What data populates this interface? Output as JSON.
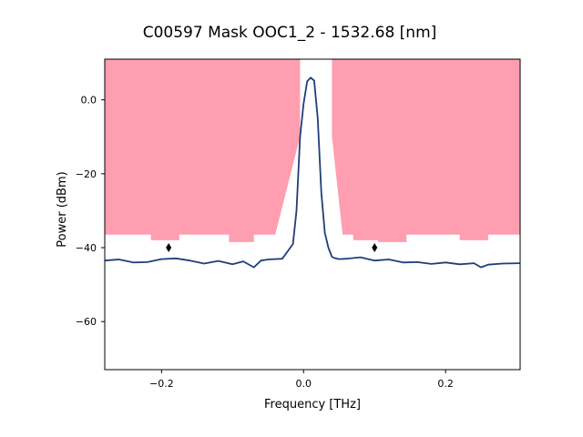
{
  "chart_data": {
    "type": "line",
    "title": "C00597 Mask OOC1_2 - 1532.68 [nm]",
    "xlabel": "Frequency [THz]",
    "ylabel": "Power (dBm)",
    "xlim": [
      -0.28,
      0.305
    ],
    "ylim": [
      -73,
      11
    ],
    "x_ticks": [
      -0.2,
      0.0,
      0.2
    ],
    "x_tick_labels": [
      "−0.2",
      "0.0",
      "0.2"
    ],
    "y_ticks": [
      0,
      -20,
      -40,
      -60
    ],
    "y_tick_labels": [
      "0.0",
      "−20",
      "−40",
      "−60"
    ],
    "grid": false,
    "colors": {
      "mask": "#ff9eb1",
      "trace": "#1f3e7a",
      "marker": "#000000"
    },
    "mask_regions": [
      {
        "side": "left",
        "outline": [
          [
            -0.28,
            12
          ],
          [
            -0.005,
            12
          ],
          [
            -0.005,
            -10
          ],
          [
            -0.04,
            -36.5
          ],
          [
            -0.07,
            -36.5
          ],
          [
            -0.07,
            -38.5
          ],
          [
            -0.105,
            -38.5
          ],
          [
            -0.105,
            -36.5
          ],
          [
            -0.175,
            -36.5
          ],
          [
            -0.175,
            -38
          ],
          [
            -0.215,
            -38
          ],
          [
            -0.215,
            -36.5
          ],
          [
            -0.28,
            -36.5
          ]
        ]
      },
      {
        "side": "right",
        "outline": [
          [
            0.04,
            12
          ],
          [
            0.305,
            12
          ],
          [
            0.305,
            -36.5
          ],
          [
            0.26,
            -36.5
          ],
          [
            0.26,
            -38
          ],
          [
            0.22,
            -38
          ],
          [
            0.22,
            -36.5
          ],
          [
            0.145,
            -36.5
          ],
          [
            0.145,
            -38.5
          ],
          [
            0.105,
            -38.5
          ],
          [
            0.105,
            -38
          ],
          [
            0.07,
            -38
          ],
          [
            0.07,
            -36.5
          ],
          [
            0.055,
            -36.5
          ],
          [
            0.04,
            -10
          ]
        ]
      }
    ],
    "series": [
      {
        "x": [
          -0.28,
          -0.26,
          -0.24,
          -0.22,
          -0.2,
          -0.18,
          -0.16,
          -0.14,
          -0.12,
          -0.1,
          -0.085,
          -0.07,
          -0.06,
          -0.05,
          -0.03,
          -0.015,
          -0.01,
          -0.005,
          0.0,
          0.005,
          0.01,
          0.015,
          0.02,
          0.025,
          0.03,
          0.035,
          0.04,
          0.045,
          0.05,
          0.06,
          0.08,
          0.1,
          0.12,
          0.14,
          0.16,
          0.18,
          0.2,
          0.22,
          0.24,
          0.25,
          0.26,
          0.28,
          0.305
        ],
        "y": [
          -43.5,
          -43.2,
          -44.0,
          -43.9,
          -43.1,
          -42.9,
          -43.5,
          -44.3,
          -43.6,
          -44.5,
          -43.7,
          -45.3,
          -43.5,
          -43.2,
          -43.0,
          -39.0,
          -30.0,
          -10.0,
          -1.0,
          5.0,
          6.0,
          5.2,
          -5.0,
          -25.0,
          -36.0,
          -40.0,
          -42.5,
          -42.9,
          -43.1,
          -43.0,
          -42.6,
          -43.5,
          -43.2,
          -44.0,
          -43.9,
          -44.4,
          -44.0,
          -44.5,
          -44.2,
          -45.3,
          -44.6,
          -44.3,
          -44.2
        ]
      }
    ],
    "markers": [
      {
        "x": -0.19,
        "y": -40
      },
      {
        "x": 0.1,
        "y": -40
      }
    ]
  }
}
